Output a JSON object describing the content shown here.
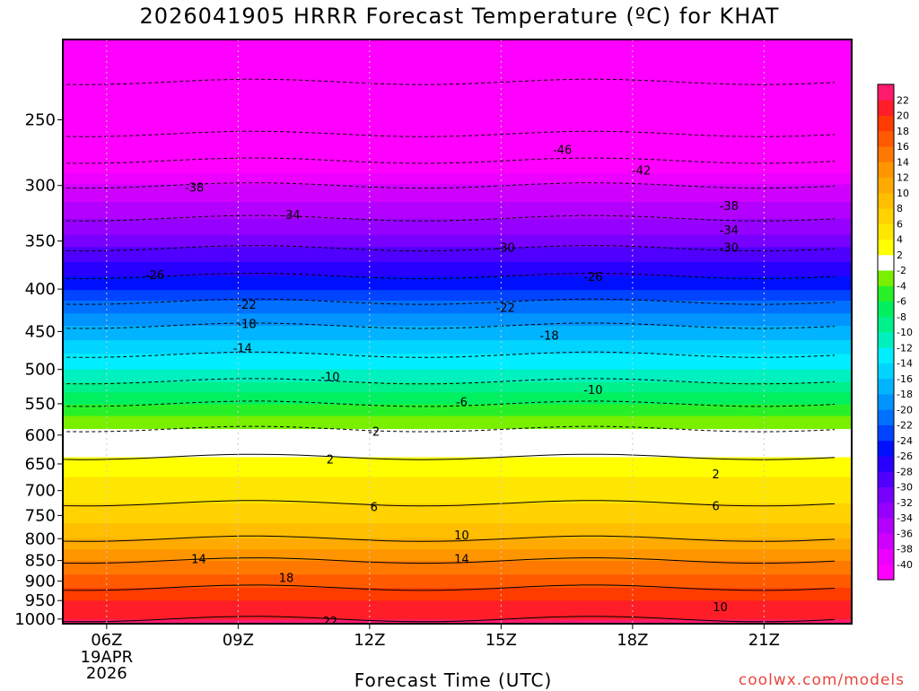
{
  "header": {
    "title": "2026041905 HRRR Forecast Temperature (ºC) for KHAT"
  },
  "footer": {
    "xlabel": "Forecast Time (UTC)",
    "credit": "coolwx.com/models"
  },
  "chart_data": {
    "type": "heatmap",
    "title": "2026041905 HRRR Forecast Temperature (ºC) for KHAT",
    "xlabel": "Forecast Time (UTC)",
    "ylabel": "",
    "x_ticks": [
      "06Z",
      "09Z",
      "12Z",
      "15Z",
      "18Z",
      "21Z"
    ],
    "x_first_tick_date": [
      "19APR",
      "2026"
    ],
    "x_hours": [
      6,
      9,
      12,
      15,
      18,
      21
    ],
    "xlim_hours": [
      5,
      23
    ],
    "y_ticks": [
      250,
      300,
      350,
      400,
      450,
      500,
      550,
      600,
      650,
      700,
      750,
      800,
      850,
      900,
      950,
      1000
    ],
    "ylim_hPa": [
      200,
      1013
    ],
    "color_scale": {
      "levels": [
        -40,
        -38,
        -36,
        -34,
        -32,
        -30,
        -28,
        -26,
        -24,
        -22,
        -20,
        -18,
        -16,
        -14,
        -12,
        -10,
        -8,
        -6,
        -4,
        -2,
        2,
        4,
        6,
        8,
        10,
        12,
        14,
        16,
        18,
        20,
        22
      ],
      "colors": [
        "#ff00ff",
        "#ec00ff",
        "#d000ff",
        "#b300ff",
        "#9600ff",
        "#7800ff",
        "#5000ff",
        "#2800ff",
        "#0010ff",
        "#0044ff",
        "#0070ff",
        "#0094ff",
        "#00b4ff",
        "#00d4ff",
        "#00eeff",
        "#00f0c0",
        "#00f08c",
        "#00f060",
        "#28f028",
        "#78f000",
        "#ffffff",
        "#ffff00",
        "#ffe600",
        "#ffd200",
        "#ffbe00",
        "#ffaa00",
        "#ff9600",
        "#ff7800",
        "#ff5a00",
        "#ff3c00",
        "#ff1e28",
        "#ff1a6e"
      ]
    },
    "temperature_profile": [
      {
        "p": 200,
        "t": -52
      },
      {
        "p": 250,
        "t": -48
      },
      {
        "p": 300,
        "t": -38
      },
      {
        "p": 350,
        "t": -31
      },
      {
        "p": 400,
        "t": -24
      },
      {
        "p": 450,
        "t": -17
      },
      {
        "p": 500,
        "t": -12
      },
      {
        "p": 550,
        "t": -6
      },
      {
        "p": 600,
        "t": -1
      },
      {
        "p": 650,
        "t": 3
      },
      {
        "p": 700,
        "t": 5
      },
      {
        "p": 750,
        "t": 7
      },
      {
        "p": 800,
        "t": 10
      },
      {
        "p": 850,
        "t": 14
      },
      {
        "p": 900,
        "t": 17
      },
      {
        "p": 950,
        "t": 20
      },
      {
        "p": 1000,
        "t": 22
      }
    ],
    "contour_labels": [
      {
        "value": "-46",
        "hour": 16.4,
        "p": 272
      },
      {
        "value": "-42",
        "hour": 18.2,
        "p": 288
      },
      {
        "value": "-38",
        "hour": 8.0,
        "p": 302
      },
      {
        "value": "-38",
        "hour": 20.2,
        "p": 318
      },
      {
        "value": "-34",
        "hour": 10.2,
        "p": 326
      },
      {
        "value": "-34",
        "hour": 20.2,
        "p": 340
      },
      {
        "value": "-30",
        "hour": 15.1,
        "p": 357
      },
      {
        "value": "-30",
        "hour": 20.2,
        "p": 357
      },
      {
        "value": "-26",
        "hour": 7.1,
        "p": 385
      },
      {
        "value": "-26",
        "hour": 17.1,
        "p": 387
      },
      {
        "value": "-22",
        "hour": 9.2,
        "p": 418
      },
      {
        "value": "-22",
        "hour": 15.1,
        "p": 422
      },
      {
        "value": "-18",
        "hour": 9.2,
        "p": 441
      },
      {
        "value": "-18",
        "hour": 16.1,
        "p": 456
      },
      {
        "value": "-14",
        "hour": 9.1,
        "p": 472
      },
      {
        "value": "-10",
        "hour": 11.1,
        "p": 511
      },
      {
        "value": "-10",
        "hour": 17.1,
        "p": 530
      },
      {
        "value": "-6",
        "hour": 14.1,
        "p": 548
      },
      {
        "value": "-2",
        "hour": 12.1,
        "p": 595
      },
      {
        "value": "2",
        "hour": 11.1,
        "p": 643
      },
      {
        "value": "2",
        "hour": 19.9,
        "p": 670
      },
      {
        "value": "6",
        "hour": 12.1,
        "p": 734
      },
      {
        "value": "6",
        "hour": 19.9,
        "p": 732
      },
      {
        "value": "10",
        "hour": 14.1,
        "p": 793
      },
      {
        "value": "10",
        "hour": 20.0,
        "p": 968
      },
      {
        "value": "14",
        "hour": 8.1,
        "p": 848
      },
      {
        "value": "14",
        "hour": 14.1,
        "p": 848
      },
      {
        "value": "18",
        "hour": 10.1,
        "p": 893
      },
      {
        "value": "22",
        "hour": 11.1,
        "p": 1008
      }
    ]
  }
}
